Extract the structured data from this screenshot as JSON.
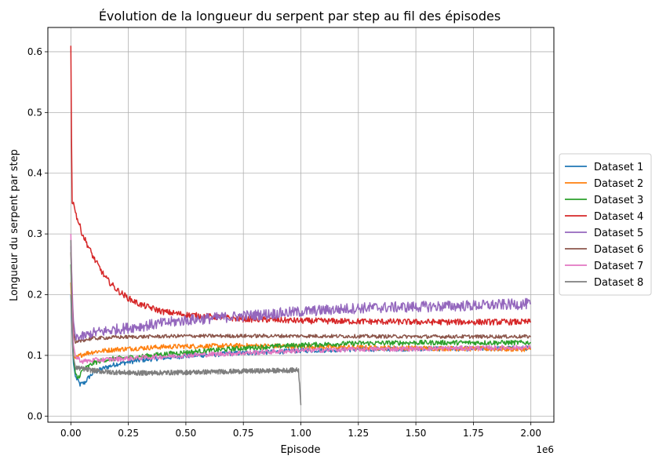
{
  "chart_data": {
    "type": "line",
    "title": "Évolution de la longueur du serpent par step au fil des épisodes",
    "xlabel": "Episode",
    "ylabel": "Longueur du serpent par step",
    "x_offset_label": "1e6",
    "xlim": [
      -0.1,
      2.1
    ],
    "ylim": [
      -0.01,
      0.64
    ],
    "xticks": [
      0.0,
      0.25,
      0.5,
      0.75,
      1.0,
      1.25,
      1.5,
      1.75,
      2.0
    ],
    "xtick_labels": [
      "0.00",
      "0.25",
      "0.50",
      "0.75",
      "1.00",
      "1.25",
      "1.50",
      "1.75",
      "2.00"
    ],
    "yticks": [
      0.0,
      0.1,
      0.2,
      0.3,
      0.4,
      0.5,
      0.6
    ],
    "ytick_labels": [
      "0.0",
      "0.1",
      "0.2",
      "0.3",
      "0.4",
      "0.5",
      "0.6"
    ],
    "grid": true,
    "legend_position": "right, outside plot",
    "series": [
      {
        "name": "Dataset 1",
        "color": "#1f77b4",
        "x": [
          0,
          0.01,
          0.02,
          0.04,
          0.06,
          0.08,
          0.1,
          0.15,
          0.2,
          0.3,
          0.4,
          0.5,
          0.6,
          0.75,
          0.9,
          1.0,
          1.25,
          1.5,
          1.75,
          2.0
        ],
        "y": [
          0.2,
          0.09,
          0.065,
          0.052,
          0.055,
          0.065,
          0.072,
          0.08,
          0.086,
          0.092,
          0.096,
          0.099,
          0.101,
          0.104,
          0.106,
          0.108,
          0.11,
          0.111,
          0.111,
          0.112
        ]
      },
      {
        "name": "Dataset 2",
        "color": "#ff7f0e",
        "x": [
          0,
          0.01,
          0.02,
          0.04,
          0.06,
          0.1,
          0.15,
          0.2,
          0.3,
          0.4,
          0.5,
          0.75,
          1.0,
          1.25,
          1.5,
          1.75,
          2.0
        ],
        "y": [
          0.22,
          0.1,
          0.095,
          0.1,
          0.103,
          0.106,
          0.108,
          0.11,
          0.112,
          0.114,
          0.115,
          0.116,
          0.115,
          0.113,
          0.112,
          0.111,
          0.11
        ]
      },
      {
        "name": "Dataset 3",
        "color": "#2ca02c",
        "x": [
          0,
          0.01,
          0.02,
          0.03,
          0.05,
          0.1,
          0.15,
          0.2,
          0.3,
          0.4,
          0.5,
          0.75,
          1.0,
          1.25,
          1.5,
          1.75,
          2.0
        ],
        "y": [
          0.25,
          0.1,
          0.07,
          0.062,
          0.075,
          0.088,
          0.093,
          0.095,
          0.098,
          0.102,
          0.105,
          0.112,
          0.117,
          0.12,
          0.121,
          0.121,
          0.121
        ]
      },
      {
        "name": "Dataset 4",
        "color": "#d62728",
        "x": [
          0,
          0.003,
          0.006,
          0.01,
          0.02,
          0.05,
          0.1,
          0.15,
          0.2,
          0.25,
          0.3,
          0.4,
          0.5,
          0.6,
          0.75,
          1.0,
          1.25,
          1.5,
          1.75,
          2.0
        ],
        "y": [
          0.61,
          0.45,
          0.34,
          0.355,
          0.335,
          0.3,
          0.26,
          0.228,
          0.208,
          0.194,
          0.184,
          0.172,
          0.167,
          0.164,
          0.16,
          0.157,
          0.156,
          0.155,
          0.155,
          0.155
        ]
      },
      {
        "name": "Dataset 5",
        "color": "#9467bd",
        "x": [
          0,
          0.01,
          0.02,
          0.05,
          0.1,
          0.2,
          0.3,
          0.5,
          0.75,
          1.0,
          1.25,
          1.5,
          1.75,
          2.0
        ],
        "y": [
          0.28,
          0.16,
          0.13,
          0.13,
          0.137,
          0.143,
          0.148,
          0.158,
          0.165,
          0.172,
          0.178,
          0.18,
          0.182,
          0.185
        ]
      },
      {
        "name": "Dataset 6",
        "color": "#8c564b",
        "x": [
          0,
          0.01,
          0.02,
          0.05,
          0.1,
          0.2,
          0.5,
          1.0,
          1.5,
          2.0
        ],
        "y": [
          0.27,
          0.14,
          0.12,
          0.125,
          0.128,
          0.13,
          0.132,
          0.132,
          0.131,
          0.131
        ]
      },
      {
        "name": "Dataset 7",
        "color": "#e377c2",
        "x": [
          0,
          0.005,
          0.01,
          0.02,
          0.05,
          0.1,
          0.2,
          0.3,
          0.5,
          0.75,
          1.0,
          1.25,
          1.5,
          1.75,
          2.0
        ],
        "y": [
          0.3,
          0.2,
          0.12,
          0.098,
          0.09,
          0.092,
          0.094,
          0.096,
          0.1,
          0.104,
          0.108,
          0.11,
          0.111,
          0.112,
          0.113
        ]
      },
      {
        "name": "Dataset 8",
        "color": "#7f7f7f",
        "x": [
          0,
          0.005,
          0.01,
          0.02,
          0.05,
          0.1,
          0.15,
          0.2,
          0.3,
          0.5,
          0.75,
          0.9,
          0.99,
          1.0
        ],
        "y": [
          0.29,
          0.15,
          0.1,
          0.08,
          0.078,
          0.075,
          0.073,
          0.072,
          0.071,
          0.072,
          0.074,
          0.075,
          0.076,
          0.018
        ]
      }
    ]
  }
}
